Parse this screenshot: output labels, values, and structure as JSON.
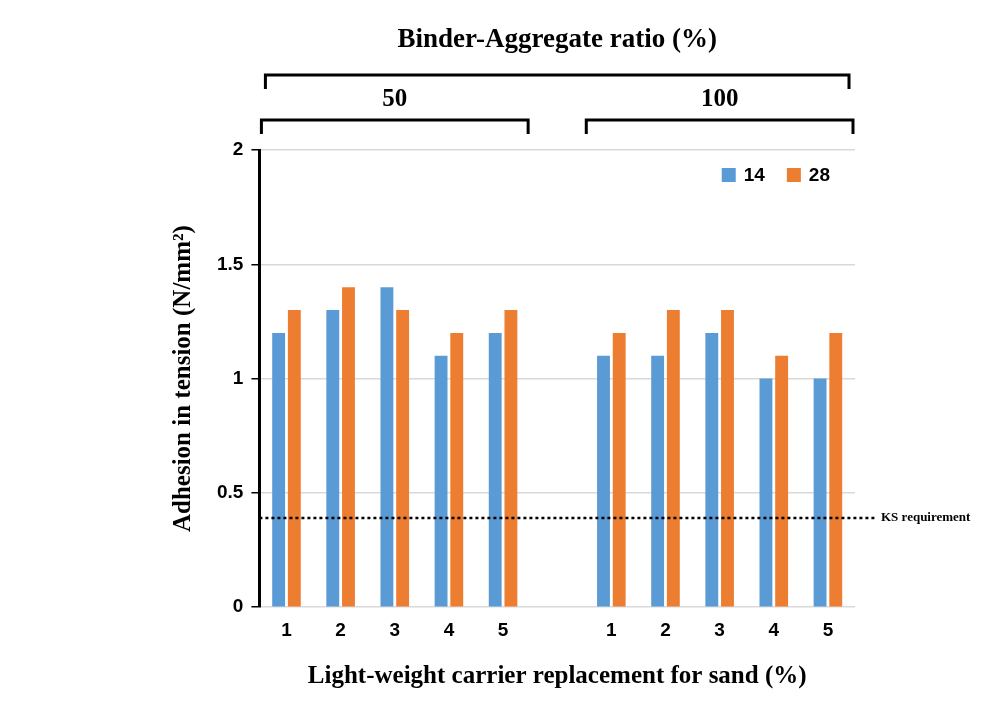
{
  "chart_data": {
    "type": "bar",
    "title": "Binder-Aggregate ratio (%)",
    "x_label": "Light-weight carrier replacement for sand (%)",
    "y_label": "Adhesion in tension (N/mm²)",
    "groups": [
      {
        "label": "50",
        "categories": [
          "1",
          "2",
          "3",
          "4",
          "5"
        ]
      },
      {
        "label": "100",
        "categories": [
          "1",
          "2",
          "3",
          "4",
          "5"
        ]
      }
    ],
    "series": [
      {
        "name": "14",
        "color": "#5b9bd5",
        "values": [
          1.2,
          1.3,
          1.4,
          1.1,
          1.2,
          1.1,
          1.1,
          1.2,
          1.0,
          1.0
        ]
      },
      {
        "name": "28",
        "color": "#ed7d31",
        "values": [
          1.3,
          1.4,
          1.3,
          1.2,
          1.3,
          1.2,
          1.3,
          1.3,
          1.1,
          1.2
        ]
      }
    ],
    "ylim": [
      0,
      2
    ],
    "yticks": [
      0,
      0.5,
      1,
      1.5,
      2
    ],
    "grid": true,
    "legend": "upper right",
    "annotations": [
      {
        "text": "KS requirement",
        "y": 0.39,
        "line_style": "dotted"
      }
    ]
  }
}
